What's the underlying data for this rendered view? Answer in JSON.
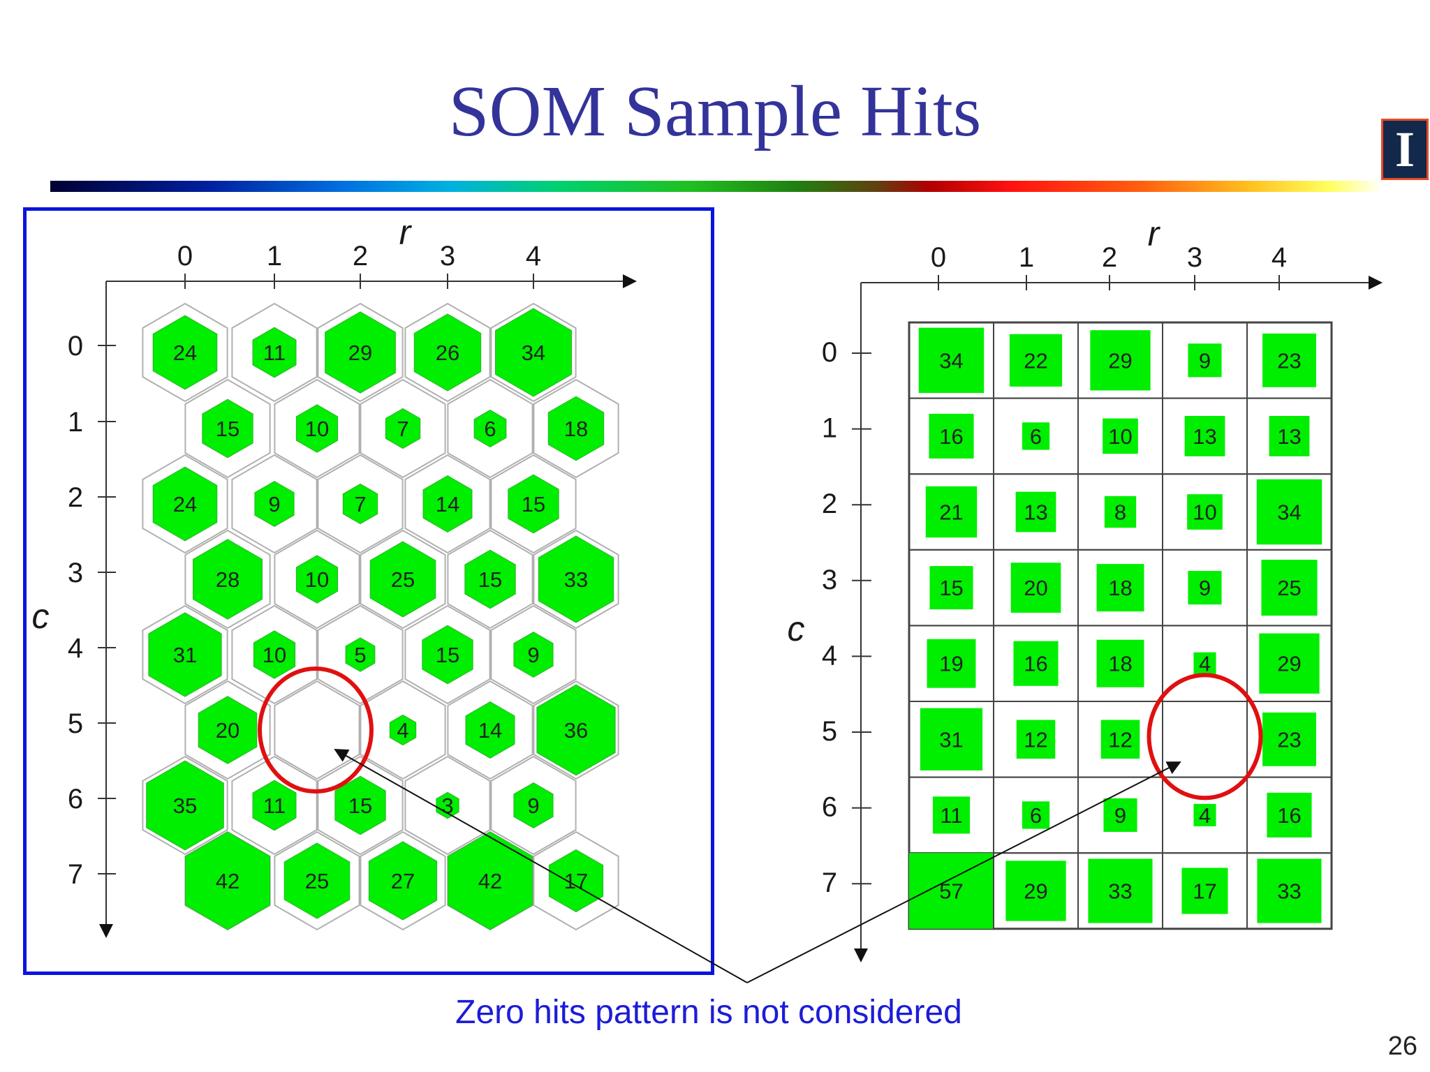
{
  "slide": {
    "title": "SOM Sample Hits",
    "caption": "Zero hits pattern is not considered",
    "page_number": "26",
    "logo_letter": "I"
  },
  "colors": {
    "title": "#33339a",
    "frame": "#0a14dc",
    "fill": "#00ee00",
    "circle": "#e01010",
    "caption": "#1c1cd8"
  },
  "maps": [
    {
      "name": "hex",
      "x_axis_label": "r",
      "y_axis_label": "c",
      "x_ticks": [
        "0",
        "1",
        "2",
        "3",
        "4"
      ],
      "y_ticks": [
        "0",
        "1",
        "2",
        "3",
        "4",
        "5",
        "6",
        "7"
      ],
      "hits": [
        [
          24,
          11,
          29,
          26,
          34
        ],
        [
          15,
          10,
          7,
          6,
          18
        ],
        [
          24,
          9,
          7,
          14,
          15
        ],
        [
          28,
          10,
          25,
          15,
          33
        ],
        [
          31,
          10,
          5,
          15,
          9
        ],
        [
          20,
          0,
          4,
          14,
          36
        ],
        [
          35,
          11,
          15,
          3,
          9
        ],
        [
          42,
          25,
          27,
          42,
          17
        ]
      ],
      "zero_hit_cell": {
        "row": 5,
        "col": 1
      }
    },
    {
      "name": "grid",
      "x_axis_label": "r",
      "y_axis_label": "c",
      "x_ticks": [
        "0",
        "1",
        "2",
        "3",
        "4"
      ],
      "y_ticks": [
        "0",
        "1",
        "2",
        "3",
        "4",
        "5",
        "6",
        "7"
      ],
      "hits": [
        [
          34,
          22,
          29,
          9,
          23
        ],
        [
          16,
          6,
          10,
          13,
          13
        ],
        [
          21,
          13,
          8,
          10,
          34
        ],
        [
          15,
          20,
          18,
          9,
          25
        ],
        [
          19,
          16,
          18,
          4,
          29
        ],
        [
          31,
          12,
          12,
          0,
          23
        ],
        [
          11,
          6,
          9,
          4,
          16
        ],
        [
          57,
          29,
          33,
          17,
          33
        ]
      ],
      "zero_hit_cell": {
        "row": 5,
        "col": 3
      }
    }
  ]
}
